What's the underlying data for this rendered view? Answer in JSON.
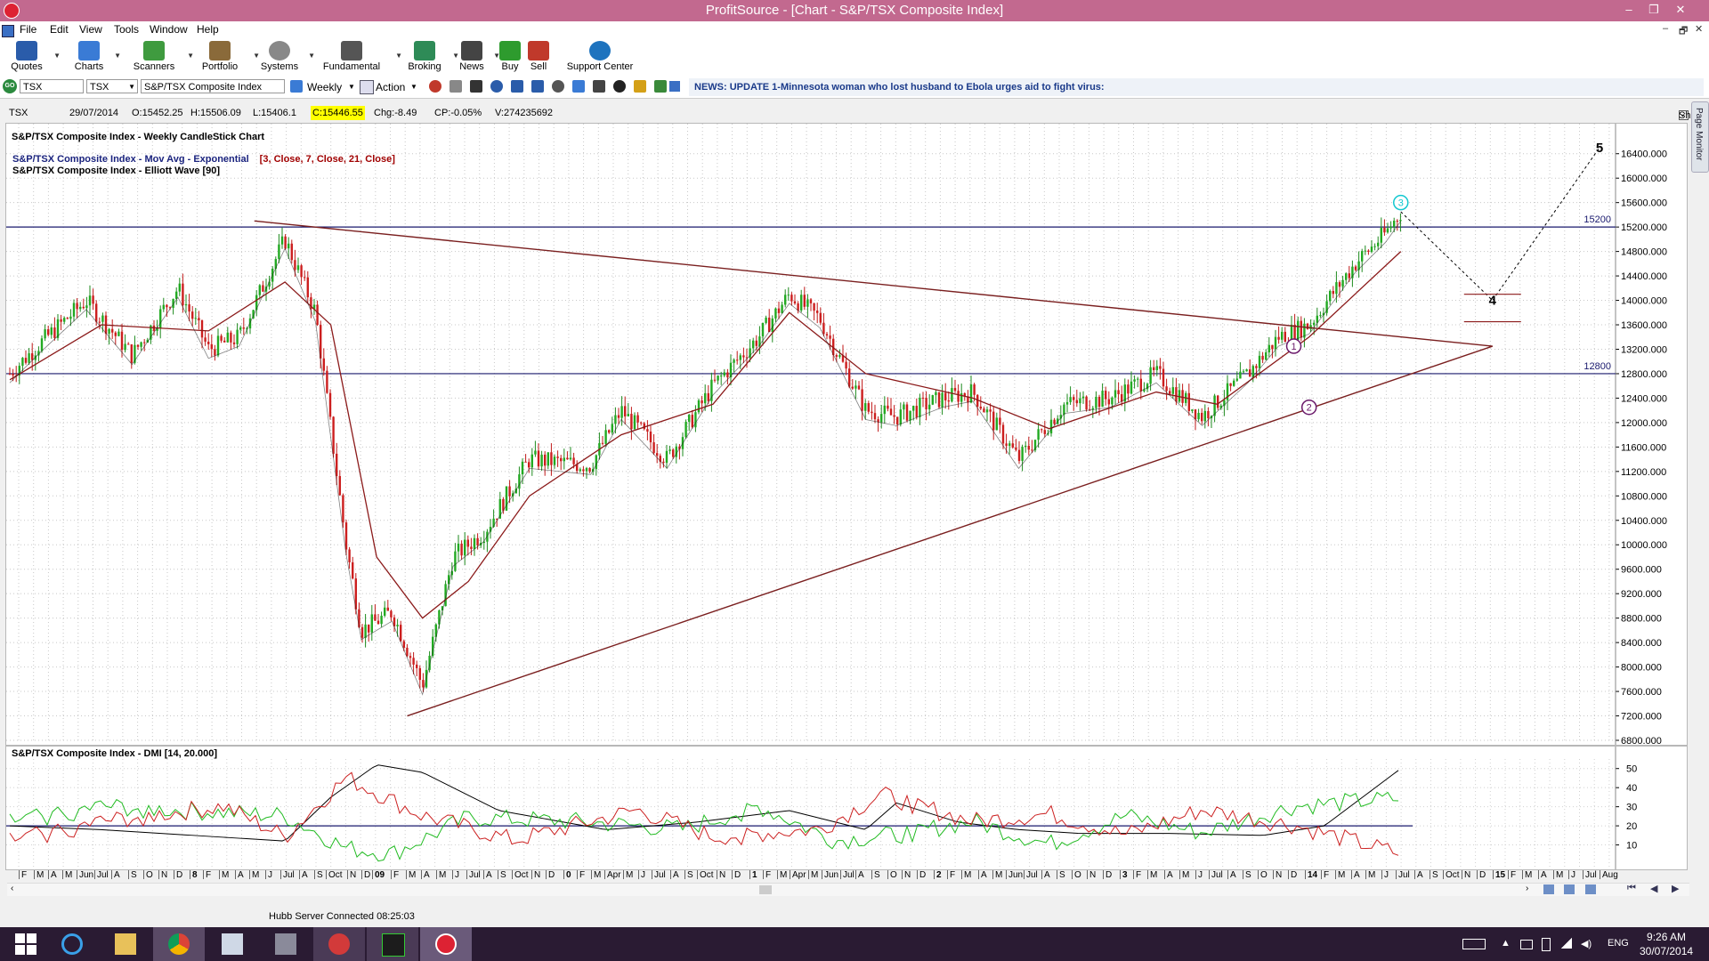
{
  "window": {
    "title": "ProfitSource - [Chart - S&P/TSX Composite Index]",
    "minimize": "–",
    "restore": "❐",
    "close": "✕"
  },
  "menu": [
    "File",
    "Edit",
    "View",
    "Tools",
    "Window",
    "Help"
  ],
  "mdi_controls": [
    "–",
    "🗗",
    "✕"
  ],
  "toolbar": [
    {
      "label": "Quotes",
      "icon": "quotes-icon",
      "color": "#2a5caa"
    },
    {
      "label": "Charts",
      "icon": "charts-icon",
      "color": "#3a7bd5"
    },
    {
      "label": "Scanners",
      "icon": "scanners-icon",
      "color": "#3f9b3f"
    },
    {
      "label": "Portfolio",
      "icon": "portfolio-icon",
      "color": "#8a6a3a"
    },
    {
      "label": "Systems",
      "icon": "systems-icon",
      "color": "#888888"
    },
    {
      "label": "Fundamental",
      "icon": "fundamental-icon",
      "color": "#555555"
    },
    {
      "label": "Broking",
      "icon": "broking-icon",
      "color": "#2e8b57"
    },
    {
      "label": "News",
      "icon": "news-icon",
      "color": "#444444"
    },
    {
      "label": "Buy",
      "icon": "buy-icon",
      "color": "#2e9b2e"
    },
    {
      "label": "Sell",
      "icon": "sell-icon",
      "color": "#c0392b"
    },
    {
      "label": "Support Center",
      "icon": "help-icon",
      "color": "#1e73be"
    }
  ],
  "symbol_bar": {
    "go": "GO",
    "symbol": "TSX",
    "exchange": "TSX",
    "name": "S&P/TSX Composite Index",
    "period": "Weekly",
    "action": "Action"
  },
  "news": "NEWS: UPDATE 1-Minnesota woman who lost husband to Ebola urges aid to fight virus:",
  "info": {
    "symbol": "TSX",
    "date": "29/07/2014",
    "open": "O:15452.25",
    "high": "H:15506.09",
    "low": "L:15406.1",
    "close": "C:15446.55",
    "change": "Chg:-8.49",
    "change_pct": "CP:-0.05%",
    "volume": "V:274235692",
    "show_last": "Show Last"
  },
  "side_tab": "Page Monitor",
  "status": "Hubb Server Connected 08:25:03",
  "clock": {
    "time": "9:26 AM",
    "date": "30/07/2014"
  },
  "tray": {
    "lang": "ENG"
  },
  "chart_data": [
    {
      "type": "candlestick",
      "title": "S&P/TSX Composite Index - Weekly CandleStick Chart",
      "indicator_labels": [
        {
          "name": "S&P/TSX Composite Index - Mov Avg - Exponential",
          "params": "[3, Close, 7, Close, 21, Close]"
        },
        {
          "name": "S&P/TSX Composite Index - Elliott Wave [90]"
        }
      ],
      "ylim": [
        6800,
        16600
      ],
      "yticks": [
        "16400.000",
        "16000.000",
        "15600.000",
        "15200.000",
        "14800.000",
        "14400.000",
        "14000.000",
        "13600.000",
        "13200.000",
        "12800.000",
        "12400.000",
        "12000.000",
        "11600.000",
        "11200.000",
        "10800.000",
        "10400.000",
        "10000.000",
        "9600.000",
        "9200.000",
        "8800.000",
        "8400.000",
        "8000.000",
        "7600.000",
        "7200.000",
        "6800.000"
      ],
      "x_date_range": [
        "2006-12",
        "2015-08"
      ],
      "hlines": [
        {
          "value": 15200,
          "label": "15200"
        },
        {
          "value": 12800,
          "label": "12800"
        }
      ],
      "series": [
        {
          "name": "Close",
          "points": [
            [
              "2006-12",
              12800
            ],
            [
              "2007-02",
              13300
            ],
            [
              "2007-05",
              14000
            ],
            [
              "2007-08",
              13100
            ],
            [
              "2007-11",
              14200
            ],
            [
              "2008-01",
              13200
            ],
            [
              "2008-03",
              13400
            ],
            [
              "2008-06",
              15000
            ],
            [
              "2008-08",
              13800
            ],
            [
              "2008-10",
              10000
            ],
            [
              "2008-11",
              8600
            ],
            [
              "2009-01",
              8900
            ],
            [
              "2009-03",
              7700
            ],
            [
              "2009-05",
              9800
            ],
            [
              "2009-07",
              10200
            ],
            [
              "2009-10",
              11400
            ],
            [
              "2010-02",
              11300
            ],
            [
              "2010-04",
              12200
            ],
            [
              "2010-07",
              11400
            ],
            [
              "2010-10",
              12600
            ],
            [
              "2011-01",
              13400
            ],
            [
              "2011-03",
              14100
            ],
            [
              "2011-05",
              13700
            ],
            [
              "2011-08",
              12200
            ],
            [
              "2011-10",
              12100
            ],
            [
              "2012-01",
              12400
            ],
            [
              "2012-03",
              12500
            ],
            [
              "2012-06",
              11400
            ],
            [
              "2012-09",
              12300
            ],
            [
              "2012-12",
              12400
            ],
            [
              "2013-03",
              12800
            ],
            [
              "2013-06",
              12100
            ],
            [
              "2013-09",
              12800
            ],
            [
              "2013-11",
              13400
            ],
            [
              "2014-01",
              13600
            ],
            [
              "2014-04",
              14600
            ],
            [
              "2014-06",
              15100
            ],
            [
              "2014-07",
              15447
            ]
          ]
        },
        {
          "name": "EMA 21",
          "points": [
            [
              "2006-12",
              12700
            ],
            [
              "2007-06",
              13600
            ],
            [
              "2008-01",
              13500
            ],
            [
              "2008-06",
              14300
            ],
            [
              "2008-09",
              13600
            ],
            [
              "2008-12",
              9800
            ],
            [
              "2009-03",
              8800
            ],
            [
              "2009-06",
              9400
            ],
            [
              "2009-10",
              10800
            ],
            [
              "2010-04",
              11800
            ],
            [
              "2010-10",
              12300
            ],
            [
              "2011-03",
              13800
            ],
            [
              "2011-08",
              12800
            ],
            [
              "2012-03",
              12400
            ],
            [
              "2012-08",
              11900
            ],
            [
              "2013-03",
              12500
            ],
            [
              "2013-07",
              12300
            ],
            [
              "2014-01",
              13400
            ],
            [
              "2014-07",
              14800
            ]
          ]
        }
      ],
      "trendlines": [
        {
          "name": "upper",
          "from": [
            "2008-04",
            15300
          ],
          "to": [
            "2015-01",
            13250
          ]
        },
        {
          "name": "lower",
          "from": [
            "2009-02",
            7200
          ],
          "to": [
            "2015-01",
            13250
          ]
        }
      ],
      "elliott_wave": [
        {
          "label": "1",
          "date": "2013-12",
          "value": 13250
        },
        {
          "label": "2",
          "date": "2014-01",
          "value": 12250
        },
        {
          "label": "3",
          "date": "2014-07",
          "value": 15600
        },
        {
          "label": "4",
          "date": "2015-01",
          "value": 14000
        },
        {
          "label": "5",
          "date": "2015-08",
          "value": 16500
        }
      ],
      "projection": [
        [
          "2014-07",
          15450
        ],
        [
          "2015-01",
          14000
        ],
        [
          "2015-08",
          16500
        ]
      ],
      "wave4_range": [
        13650,
        14100
      ]
    },
    {
      "type": "line",
      "title": "S&P/TSX Composite Index - DMI [14, 20.000]",
      "ylim": [
        0,
        55
      ],
      "yticks": [
        "50",
        "40",
        "30",
        "20",
        "10"
      ],
      "hline": 20,
      "series": [
        {
          "name": "ADX",
          "color": "#000000",
          "points": [
            [
              "2006-12",
              20
            ],
            [
              "2007-06",
              18
            ],
            [
              "2008-06",
              12
            ],
            [
              "2008-09",
              35
            ],
            [
              "2008-12",
              52
            ],
            [
              "2009-03",
              48
            ],
            [
              "2009-08",
              28
            ],
            [
              "2010-03",
              18
            ],
            [
              "2010-09",
              22
            ],
            [
              "2011-03",
              28
            ],
            [
              "2011-08",
              18
            ],
            [
              "2011-10",
              32
            ],
            [
              "2012-02",
              22
            ],
            [
              "2012-06",
              18
            ],
            [
              "2012-10",
              16
            ],
            [
              "2013-04",
              16
            ],
            [
              "2013-10",
              15
            ],
            [
              "2014-02",
              20
            ],
            [
              "2014-07",
              50
            ]
          ]
        },
        {
          "name": "+DI",
          "color": "#22bb22",
          "points": [
            [
              "2006-12",
              22
            ],
            [
              "2007-06",
              30
            ],
            [
              "2008-06",
              25
            ],
            [
              "2008-10",
              8
            ],
            [
              "2009-01",
              5
            ],
            [
              "2009-06",
              24
            ],
            [
              "2010-01",
              22
            ],
            [
              "2010-08",
              18
            ],
            [
              "2011-01",
              30
            ],
            [
              "2011-06",
              12
            ],
            [
              "2011-10",
              15
            ],
            [
              "2012-03",
              22
            ],
            [
              "2012-08",
              10
            ],
            [
              "2013-01",
              25
            ],
            [
              "2013-06",
              16
            ],
            [
              "2013-12",
              30
            ],
            [
              "2014-07",
              34
            ]
          ]
        },
        {
          "name": "-DI",
          "color": "#cc2222",
          "points": [
            [
              "2006-12",
              12
            ],
            [
              "2007-06",
              22
            ],
            [
              "2008-02",
              30
            ],
            [
              "2008-06",
              14
            ],
            [
              "2008-10",
              45
            ],
            [
              "2009-03",
              25
            ],
            [
              "2009-09",
              12
            ],
            [
              "2010-05",
              28
            ],
            [
              "2010-10",
              14
            ],
            [
              "2011-05",
              18
            ],
            [
              "2011-09",
              36
            ],
            [
              "2012-03",
              22
            ],
            [
              "2012-08",
              26
            ],
            [
              "2013-01",
              15
            ],
            [
              "2013-06",
              28
            ],
            [
              "2013-12",
              20
            ],
            [
              "2014-07",
              5
            ]
          ]
        }
      ]
    }
  ],
  "time_axis": [
    {
      "t": "F",
      "x": 24
    },
    {
      "t": "M",
      "x": 41
    },
    {
      "t": "A",
      "x": 57
    },
    {
      "t": "M",
      "x": 73
    },
    {
      "t": "Jun",
      "x": 89
    },
    {
      "t": "Jul",
      "x": 109
    },
    {
      "t": "A",
      "x": 128
    },
    {
      "t": "S",
      "x": 147
    },
    {
      "t": "O",
      "x": 164
    },
    {
      "t": "N",
      "x": 181
    },
    {
      "t": "D",
      "x": 198
    },
    {
      "t": "8",
      "x": 216,
      "bold": true
    },
    {
      "t": "F",
      "x": 231
    },
    {
      "t": "M",
      "x": 249
    },
    {
      "t": "A",
      "x": 267
    },
    {
      "t": "M",
      "x": 283
    },
    {
      "t": "J",
      "x": 301
    },
    {
      "t": "Jul",
      "x": 318
    },
    {
      "t": "A",
      "x": 339
    },
    {
      "t": "S",
      "x": 356
    },
    {
      "t": "Oct",
      "x": 369
    },
    {
      "t": "N",
      "x": 393
    },
    {
      "t": "D",
      "x": 409
    },
    {
      "t": "09",
      "x": 421,
      "bold": true
    },
    {
      "t": "F",
      "x": 442
    },
    {
      "t": "M",
      "x": 459
    },
    {
      "t": "A",
      "x": 476
    },
    {
      "t": "M",
      "x": 493
    },
    {
      "t": "J",
      "x": 511
    },
    {
      "t": "Jul",
      "x": 527
    },
    {
      "t": "A",
      "x": 546
    },
    {
      "t": "S",
      "x": 562
    },
    {
      "t": "Oct",
      "x": 578
    },
    {
      "t": "N",
      "x": 600
    },
    {
      "t": "D",
      "x": 616
    },
    {
      "t": "0",
      "x": 636,
      "bold": true
    },
    {
      "t": "F",
      "x": 651
    },
    {
      "t": "M",
      "x": 667
    },
    {
      "t": "Apr",
      "x": 682
    },
    {
      "t": "M",
      "x": 703
    },
    {
      "t": "J",
      "x": 720
    },
    {
      "t": "Jul",
      "x": 735
    },
    {
      "t": "A",
      "x": 756
    },
    {
      "t": "S",
      "x": 772
    },
    {
      "t": "Oct",
      "x": 786
    },
    {
      "t": "N",
      "x": 808
    },
    {
      "t": "D",
      "x": 825
    },
    {
      "t": "1",
      "x": 845,
      "bold": true
    },
    {
      "t": "F",
      "x": 860
    },
    {
      "t": "M",
      "x": 876
    },
    {
      "t": "Apr",
      "x": 890
    },
    {
      "t": "M",
      "x": 911
    },
    {
      "t": "Jun",
      "x": 926
    },
    {
      "t": "Jul",
      "x": 947
    },
    {
      "t": "A",
      "x": 964
    },
    {
      "t": "S",
      "x": 982
    },
    {
      "t": "O",
      "x": 1000
    },
    {
      "t": "N",
      "x": 1016
    },
    {
      "t": "D",
      "x": 1033
    },
    {
      "t": "2",
      "x": 1052,
      "bold": true
    },
    {
      "t": "F",
      "x": 1067
    },
    {
      "t": "M",
      "x": 1083
    },
    {
      "t": "A",
      "x": 1102
    },
    {
      "t": "M",
      "x": 1118
    },
    {
      "t": "Jun",
      "x": 1133
    },
    {
      "t": "Jul",
      "x": 1153
    },
    {
      "t": "A",
      "x": 1173
    },
    {
      "t": "S",
      "x": 1190
    },
    {
      "t": "O",
      "x": 1207
    },
    {
      "t": "N",
      "x": 1224
    },
    {
      "t": "D",
      "x": 1242
    },
    {
      "t": "3",
      "x": 1261,
      "bold": true
    },
    {
      "t": "F",
      "x": 1276
    },
    {
      "t": "M",
      "x": 1292
    },
    {
      "t": "A",
      "x": 1311
    },
    {
      "t": "M",
      "x": 1328
    },
    {
      "t": "J",
      "x": 1346
    },
    {
      "t": "Jul",
      "x": 1361
    },
    {
      "t": "A",
      "x": 1382
    },
    {
      "t": "S",
      "x": 1399
    },
    {
      "t": "O",
      "x": 1416
    },
    {
      "t": "N",
      "x": 1433
    },
    {
      "t": "D",
      "x": 1450
    },
    {
      "t": "14",
      "x": 1469,
      "bold": true
    },
    {
      "t": "F",
      "x": 1487
    },
    {
      "t": "M",
      "x": 1503
    },
    {
      "t": "A",
      "x": 1521
    },
    {
      "t": "M",
      "x": 1537
    },
    {
      "t": "J",
      "x": 1555
    },
    {
      "t": "Jul",
      "x": 1571
    },
    {
      "t": "A",
      "x": 1592
    },
    {
      "t": "S",
      "x": 1609
    },
    {
      "t": "Oct",
      "x": 1624
    },
    {
      "t": "N",
      "x": 1645
    },
    {
      "t": "D",
      "x": 1662
    },
    {
      "t": "15",
      "x": 1680,
      "bold": true
    },
    {
      "t": "F",
      "x": 1697
    },
    {
      "t": "M",
      "x": 1713
    },
    {
      "t": "A",
      "x": 1731
    },
    {
      "t": "M",
      "x": 1748
    },
    {
      "t": "J",
      "x": 1765
    },
    {
      "t": "Jul",
      "x": 1781
    },
    {
      "t": "Aug",
      "x": 1800
    }
  ]
}
